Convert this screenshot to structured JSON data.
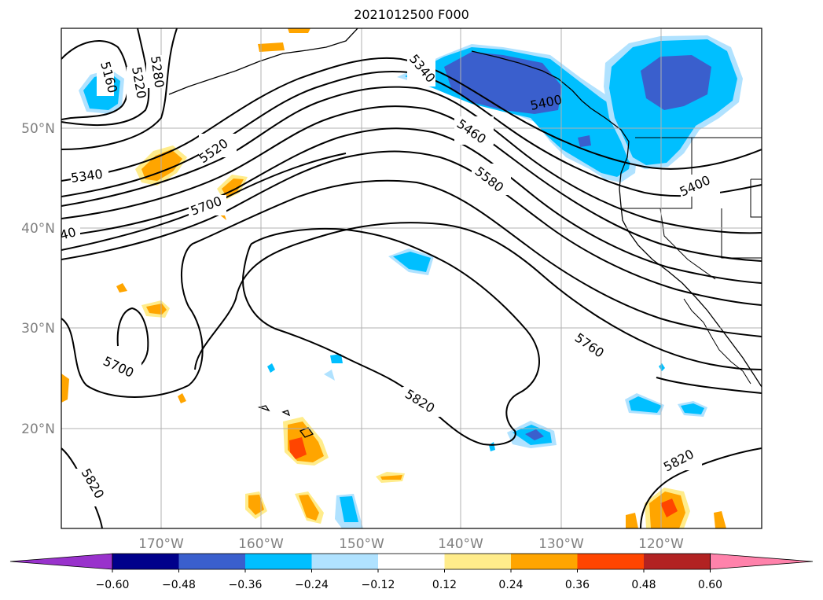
{
  "title": "2021012500 F000",
  "lat_labels": [
    "50°N",
    "40°N",
    "30°N",
    "20°N"
  ],
  "lon_labels": [
    "170°W",
    "160°W",
    "150°W",
    "140°W",
    "130°W",
    "120°W"
  ],
  "contour_labels": [
    "5160",
    "5220",
    "5280",
    "5340",
    "5520",
    "5700",
    "40",
    "5700",
    "5340",
    "5400",
    "5460",
    "5580",
    "5760",
    "5820",
    "5820",
    "5820",
    "5400"
  ],
  "colorbar": {
    "colors": [
      "#9932cc",
      "#00008b",
      "#3a5fcd",
      "#00bfff",
      "#b0e2ff",
      "#ffffff",
      "#ffec8b",
      "#ffa500",
      "#ff4500",
      "#b22222",
      "#ff82ab"
    ],
    "tick_labels": [
      "−0.60",
      "−0.48",
      "−0.36",
      "−0.24",
      "−0.12",
      "0.12",
      "0.24",
      "0.36",
      "0.48",
      "0.60"
    ]
  },
  "colors": {
    "neg_weak": "#b0e2ff",
    "neg_mid": "#00bfff",
    "neg_strong": "#3a5fcd",
    "pos_weak": "#ffec8b",
    "pos_mid": "#ffa500",
    "pos_strong": "#ff4500",
    "grid": "#b0b0b0"
  }
}
